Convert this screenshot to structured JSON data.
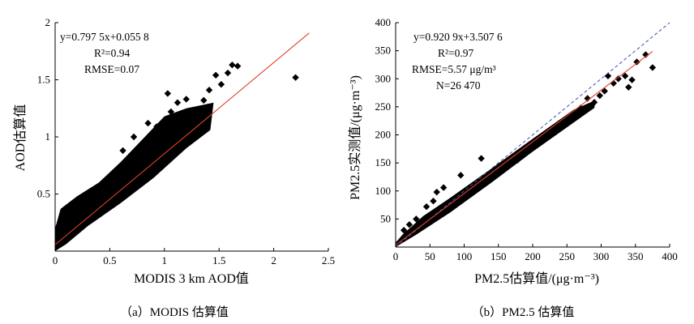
{
  "chart_data": [
    {
      "type": "scatter",
      "xlabel": "MODIS 3 km AOD值",
      "ylabel": "AOD估算值",
      "xlim": [
        0,
        2.5
      ],
      "ylim": [
        0,
        2
      ],
      "xticks": [
        "0",
        "0.5",
        "1",
        "1.5",
        "2",
        "2.5"
      ],
      "yticks": [
        "0.5",
        "1",
        "1.5",
        "2"
      ],
      "regression": {
        "slope": 0.7975,
        "intercept": 0.0558,
        "color": "#e0402a"
      },
      "annotations": {
        "equation": "y=0.797 5x+0.055 8",
        "r2": "R²=0.94",
        "rmse": "RMSE=0.07"
      },
      "points": [
        [
          2.2,
          1.52
        ],
        [
          1.67,
          1.62
        ],
        [
          1.62,
          1.63
        ],
        [
          1.58,
          1.56
        ],
        [
          1.52,
          1.46
        ],
        [
          1.47,
          1.54
        ],
        [
          1.41,
          1.41
        ],
        [
          1.36,
          1.32
        ],
        [
          1.3,
          1.24
        ],
        [
          1.25,
          1.14
        ],
        [
          1.2,
          1.33
        ],
        [
          1.12,
          1.3
        ],
        [
          1.06,
          1.22
        ],
        [
          1.03,
          1.38
        ],
        [
          0.93,
          1.09
        ],
        [
          0.85,
          1.12
        ],
        [
          0.72,
          1.0
        ],
        [
          0.62,
          0.88
        ]
      ],
      "cloud_band": [
        [
          0.0,
          0.0
        ],
        [
          0.1,
          0.06
        ],
        [
          0.3,
          0.22
        ],
        [
          0.6,
          0.42
        ],
        [
          0.9,
          0.64
        ],
        [
          1.2,
          0.9
        ],
        [
          1.42,
          1.06
        ],
        [
          1.45,
          1.3
        ],
        [
          1.2,
          1.25
        ],
        [
          1.0,
          1.18
        ],
        [
          0.8,
          0.98
        ],
        [
          0.6,
          0.78
        ],
        [
          0.4,
          0.6
        ],
        [
          0.2,
          0.48
        ],
        [
          0.05,
          0.37
        ],
        [
          0.0,
          0.2
        ]
      ],
      "caption": "（a）MODIS 估算值"
    },
    {
      "type": "scatter",
      "xlabel": "PM2.5估算值/(μg·m⁻³)",
      "ylabel": "PM2.5实测值/(μg·m⁻³)",
      "xlim": [
        0,
        400
      ],
      "ylim": [
        0,
        400
      ],
      "xticks": [
        "0",
        "50",
        "100",
        "150",
        "200",
        "250",
        "300",
        "350",
        "400"
      ],
      "yticks": [
        "50",
        "100",
        "150",
        "200",
        "250",
        "300",
        "350",
        "400"
      ],
      "regression": {
        "slope": 0.9209,
        "intercept": 3.5076,
        "x_end": 375,
        "color": "#e0402a"
      },
      "one_to_one": {
        "color": "#3b4fb0"
      },
      "annotations": {
        "equation": "y=0.920 9x+3.507 6",
        "r2": "R²=0.97",
        "rmse": "RMSE=5.57 μg/m³",
        "n": "N=26 470"
      },
      "points": [
        [
          375,
          320
        ],
        [
          365,
          343
        ],
        [
          352,
          330
        ],
        [
          345,
          298
        ],
        [
          340,
          285
        ],
        [
          335,
          305
        ],
        [
          325,
          300
        ],
        [
          318,
          292
        ],
        [
          310,
          305
        ],
        [
          305,
          278
        ],
        [
          298,
          270
        ],
        [
          290,
          258
        ],
        [
          280,
          265
        ],
        [
          270,
          248
        ],
        [
          262,
          240
        ],
        [
          255,
          232
        ],
        [
          248,
          222
        ],
        [
          240,
          215
        ],
        [
          230,
          205
        ],
        [
          222,
          198
        ],
        [
          215,
          190
        ],
        [
          208,
          183
        ],
        [
          200,
          178
        ],
        [
          192,
          170
        ],
        [
          185,
          162
        ],
        [
          178,
          155
        ],
        [
          170,
          150
        ],
        [
          162,
          143
        ],
        [
          155,
          138
        ],
        [
          148,
          130
        ],
        [
          140,
          125
        ],
        [
          125,
          158
        ],
        [
          95,
          128
        ],
        [
          60,
          98
        ],
        [
          70,
          106
        ],
        [
          45,
          72
        ],
        [
          55,
          82
        ],
        [
          30,
          50
        ],
        [
          20,
          40
        ],
        [
          12,
          30
        ]
      ],
      "cloud_band": [
        [
          0,
          0
        ],
        [
          30,
          22
        ],
        [
          80,
          62
        ],
        [
          140,
          115
        ],
        [
          200,
          170
        ],
        [
          260,
          222
        ],
        [
          290,
          248
        ],
        [
          292,
          262
        ],
        [
          260,
          245
        ],
        [
          200,
          193
        ],
        [
          140,
          140
        ],
        [
          80,
          88
        ],
        [
          40,
          55
        ],
        [
          10,
          22
        ],
        [
          0,
          8
        ]
      ],
      "caption": "（b）PM2.5 估算值"
    }
  ]
}
